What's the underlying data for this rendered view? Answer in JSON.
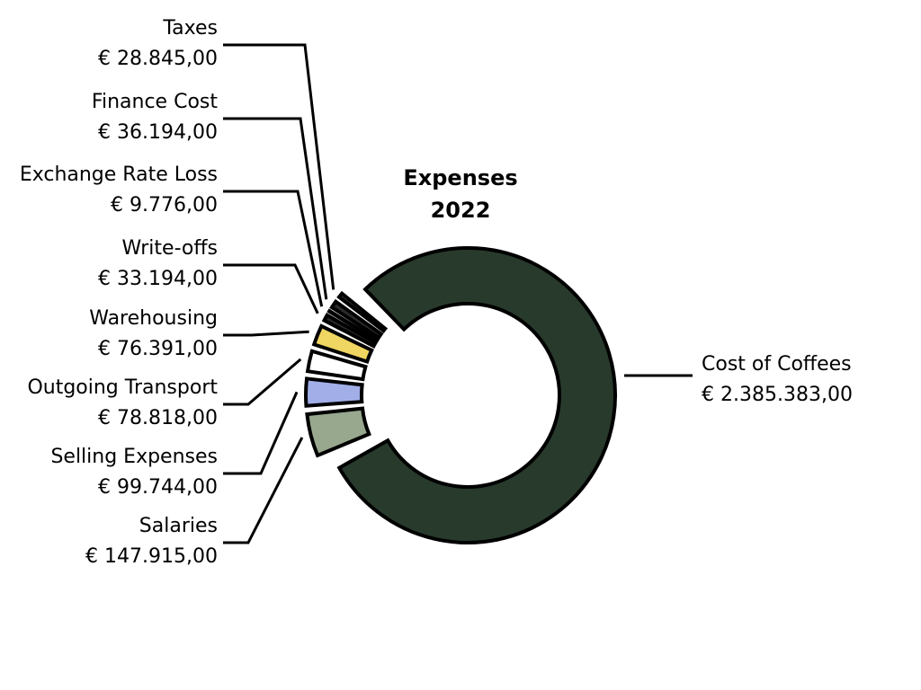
{
  "chart_data": {
    "type": "pie",
    "title": "Expenses",
    "subtitle": "2022",
    "slices": [
      {
        "label": "Cost of Coffees",
        "value": 2385383,
        "value_text": "€ 2.385.383,00",
        "color": "#283a2c"
      },
      {
        "label": "Salaries",
        "value": 147915,
        "value_text": "€ 147.915,00",
        "color": "#98a88e"
      },
      {
        "label": "Selling Expenses",
        "value": 99744,
        "value_text": "€ 99.744,00",
        "color": "#a1aee8"
      },
      {
        "label": "Outgoing Transport",
        "value": 78818,
        "value_text": "€ 78.818,00",
        "color": "#ffffff"
      },
      {
        "label": "Warehousing",
        "value": 76391,
        "value_text": "€ 76.391,00",
        "color": "#efd562"
      },
      {
        "label": "Write-offs",
        "value": 33194,
        "value_text": "€ 33.194,00",
        "color": "#262626"
      },
      {
        "label": "Exchange Rate Loss",
        "value": 9776,
        "value_text": "€ 9.776,00",
        "color": "#303030"
      },
      {
        "label": "Finance Cost",
        "value": 36194,
        "value_text": "€ 36.194,00",
        "color": "#2a2a2a"
      },
      {
        "label": "Taxes",
        "value": 28845,
        "value_text": "€ 28.845,00",
        "color": "#353535"
      }
    ]
  }
}
